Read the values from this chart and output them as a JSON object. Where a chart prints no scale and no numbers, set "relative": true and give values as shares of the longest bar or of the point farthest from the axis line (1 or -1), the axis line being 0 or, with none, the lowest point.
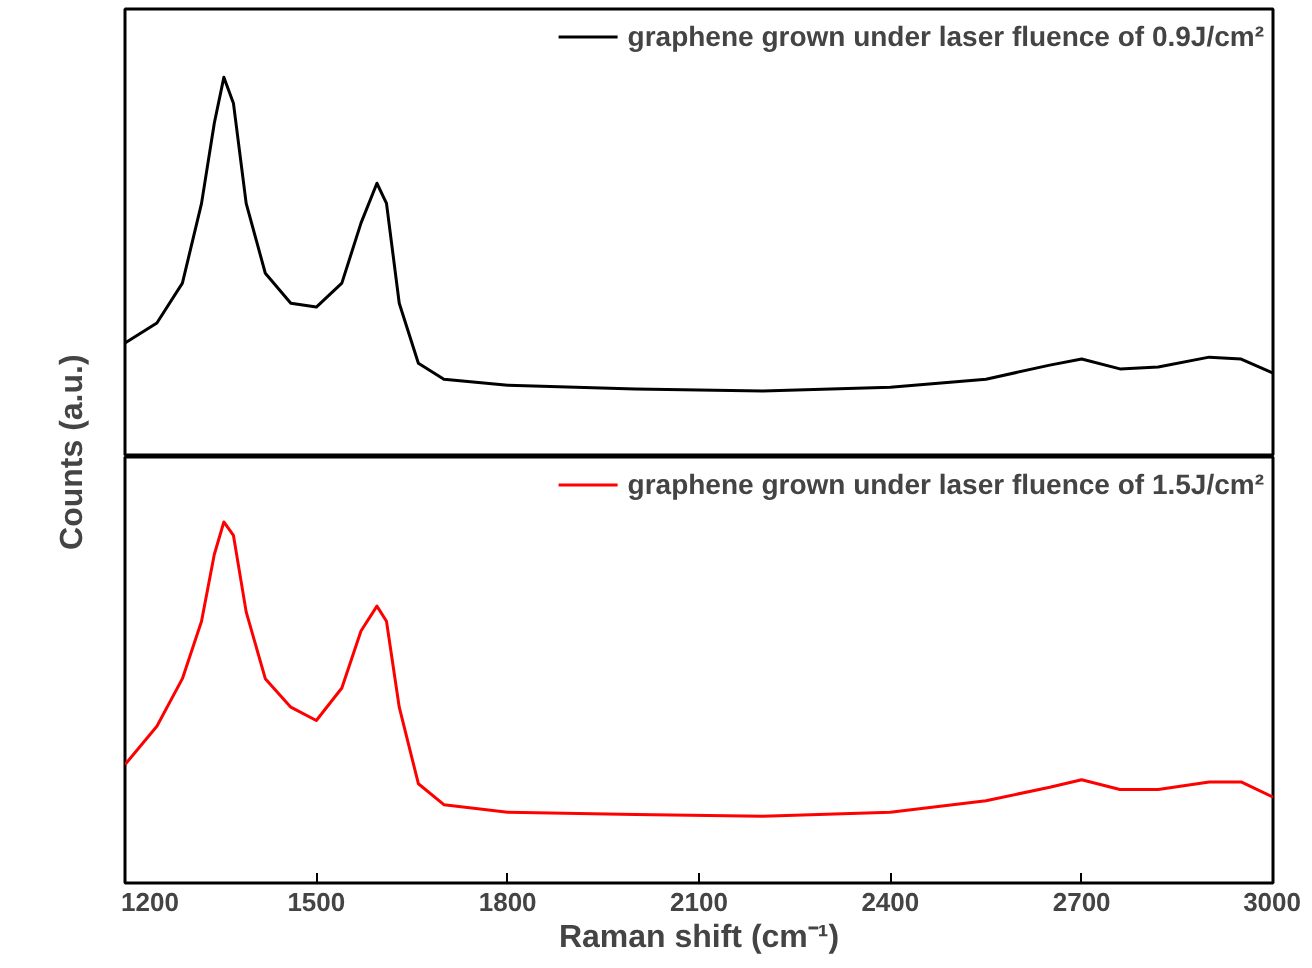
{
  "chart_data": [
    {
      "type": "line",
      "relative": true,
      "ylabel": "Counts (a.u.)",
      "xlim": [
        1200,
        3000
      ],
      "tick_labels": false,
      "legend": "top right",
      "grid": false,
      "x": [
        1200,
        1250,
        1290,
        1320,
        1340,
        1355,
        1370,
        1390,
        1420,
        1460,
        1500,
        1540,
        1570,
        1595,
        1610,
        1630,
        1660,
        1700,
        1800,
        2000,
        2200,
        2400,
        2550,
        2650,
        2700,
        2760,
        2820,
        2900,
        2950,
        3000
      ],
      "series": [
        {
          "name": "graphene grown under laser fluence of 0.9J/cm²",
          "color": "#000000",
          "values": [
            0.3,
            0.353,
            0.458,
            0.668,
            0.879,
            1.0,
            0.932,
            0.668,
            0.484,
            0.405,
            0.395,
            0.458,
            0.616,
            0.721,
            0.668,
            0.405,
            0.247,
            0.205,
            0.189,
            0.179,
            0.174,
            0.184,
            0.205,
            0.242,
            0.258,
            0.232,
            0.237,
            0.263,
            0.258,
            0.221
          ]
        }
      ]
    },
    {
      "type": "line",
      "relative": true,
      "xlabel": "Raman shift (cm⁻¹)",
      "xlim": [
        1200,
        3000
      ],
      "xticks": [
        1200,
        1500,
        1800,
        2100,
        2400,
        2700,
        3000
      ],
      "tick_labels": "x",
      "legend": "top right",
      "grid": false,
      "x": [
        1200,
        1250,
        1290,
        1320,
        1340,
        1355,
        1370,
        1390,
        1420,
        1460,
        1500,
        1540,
        1570,
        1595,
        1610,
        1630,
        1660,
        1700,
        1800,
        2000,
        2200,
        2400,
        2550,
        2650,
        2700,
        2760,
        2820,
        2900,
        2950,
        3000
      ],
      "series": [
        {
          "name": "graphene grown under laser fluence of 1.5J/cm²",
          "color": "#ff0000",
          "values": [
            0.328,
            0.434,
            0.566,
            0.725,
            0.91,
            1.0,
            0.963,
            0.751,
            0.566,
            0.487,
            0.45,
            0.54,
            0.698,
            0.767,
            0.725,
            0.487,
            0.275,
            0.217,
            0.196,
            0.19,
            0.185,
            0.196,
            0.228,
            0.265,
            0.286,
            0.259,
            0.259,
            0.28,
            0.28,
            0.238
          ]
        }
      ]
    }
  ]
}
